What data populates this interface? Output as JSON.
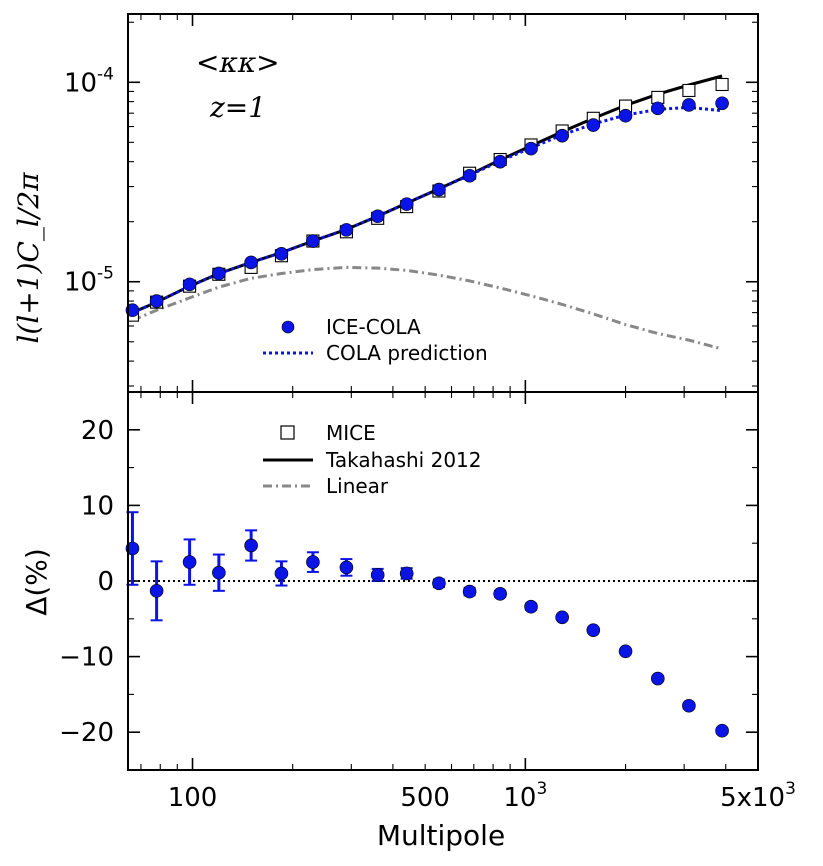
{
  "chart_data": [
    {
      "panel": "top",
      "type": "scatter",
      "xscale": "log",
      "yscale": "log",
      "xlim": [
        64,
        5000
      ],
      "ylim": [
        2.8e-06,
        0.00022
      ],
      "annotation": "<κκ>",
      "annotation_z": "z=1",
      "ylabel": "l(l+1)C_l/2π",
      "yticks": [
        {
          "value": 1e-05,
          "base": "10",
          "exp": "-5"
        },
        {
          "value": 0.0001,
          "base": "10",
          "exp": "-4"
        }
      ],
      "x": [
        66,
        78,
        98,
        120,
        150,
        185,
        230,
        290,
        360,
        440,
        550,
        680,
        840,
        1040,
        1290,
        1600,
        2000,
        2500,
        3100,
        3900
      ],
      "series": [
        {
          "name": "ICE-COLA",
          "marker": "circle",
          "color": "#0a14e6",
          "values": [
            7.2e-06,
            8e-06,
            9.7e-06,
            1.1e-05,
            1.25e-05,
            1.38e-05,
            1.6e-05,
            1.82e-05,
            2.13e-05,
            2.45e-05,
            2.9e-05,
            3.4e-05,
            4e-05,
            4.65e-05,
            5.4e-05,
            6.1e-05,
            6.8e-05,
            7.4e-05,
            7.7e-05,
            7.85e-05
          ]
        },
        {
          "name": "COLA prediction",
          "style": "dotted",
          "color": "#0a14e6",
          "values": [
            7e-06,
            7.9e-06,
            9.5e-06,
            1.1e-05,
            1.25e-05,
            1.4e-05,
            1.6e-05,
            1.83e-05,
            2.13e-05,
            2.48e-05,
            2.92e-05,
            3.42e-05,
            4.03e-05,
            4.69e-05,
            5.45e-05,
            6.18e-05,
            6.85e-05,
            7.31e-05,
            7.48e-05,
            7.2e-05
          ]
        },
        {
          "name": "MICE",
          "marker": "square",
          "color": "#000000",
          "values": [
            6.8e-06,
            7.9e-06,
            9.5e-06,
            1.09e-05,
            1.18e-05,
            1.35e-05,
            1.6e-05,
            1.78e-05,
            2.08e-05,
            2.38e-05,
            2.85e-05,
            3.5e-05,
            4.1e-05,
            4.85e-05,
            5.7e-05,
            6.6e-05,
            7.6e-05,
            8.4e-05,
            9.1e-05,
            9.75e-05
          ]
        },
        {
          "name": "Takahashi 2012",
          "style": "solid",
          "color": "#000000",
          "values": [
            7e-06,
            7.9e-06,
            9.5e-06,
            1.1e-05,
            1.25e-05,
            1.4e-05,
            1.6e-05,
            1.83e-05,
            2.13e-05,
            2.48e-05,
            2.92e-05,
            3.44e-05,
            4.08e-05,
            4.8e-05,
            5.65e-05,
            6.59e-05,
            7.66e-05,
            8.72e-05,
            9.69e-05,
            0.0001075
          ]
        },
        {
          "name": "Linear",
          "style": "dashdot",
          "color": "#888888",
          "values": [
            6.4e-06,
            7.2e-06,
            8.3e-06,
            9.4e-06,
            1.04e-05,
            1.1e-05,
            1.15e-05,
            1.18e-05,
            1.17e-05,
            1.14e-05,
            1.08e-05,
            1.01e-05,
            9.3e-06,
            8.5e-06,
            7.7e-06,
            6.9e-06,
            6.1e-06,
            5.5e-06,
            5.1e-06,
            4.6e-06
          ]
        }
      ]
    },
    {
      "panel": "bottom",
      "type": "scatter",
      "xscale": "log",
      "xlim": [
        64,
        5000
      ],
      "ylim": [
        -25,
        25
      ],
      "ylabel": "Δ(%)",
      "xlabel": "Multipole",
      "yticks": [
        20,
        10,
        0,
        -10,
        -20
      ],
      "ytick_labels": [
        "20",
        "10",
        "0",
        "−10",
        "−20"
      ],
      "xticks": [
        {
          "value": 100,
          "label": "100"
        },
        {
          "value": 500,
          "label": "500"
        },
        {
          "value": 1000,
          "base": "10",
          "exp": "3"
        },
        {
          "value": 5000,
          "base": "5x10",
          "exp": "3"
        }
      ],
      "reference_line": 0,
      "x": [
        66,
        78,
        98,
        120,
        150,
        185,
        230,
        290,
        360,
        440,
        550,
        680,
        840,
        1040,
        1290,
        1600,
        2000,
        2500,
        3100,
        3900
      ],
      "series": [
        {
          "name": "ICE-COLA",
          "color": "#0a14e6",
          "values": [
            4.3,
            -1.3,
            2.5,
            1.1,
            4.7,
            1.0,
            2.5,
            1.8,
            0.8,
            1.0,
            -0.3,
            -1.4,
            -1.7,
            -3.4,
            -4.8,
            -6.5,
            -9.3,
            -12.9,
            -16.5,
            -19.8
          ],
          "errors": [
            4.8,
            3.9,
            3.0,
            2.4,
            2.0,
            1.6,
            1.3,
            1.1,
            0.8,
            0.7,
            0.5,
            0.5,
            0.4,
            0.4,
            0.3,
            0.3,
            0.3,
            0.3,
            0.3,
            0.3
          ]
        }
      ]
    }
  ],
  "legend_top": {
    "items": [
      {
        "label": "ICE-COLA",
        "kind": "circle"
      },
      {
        "label": "COLA prediction",
        "kind": "dotted"
      }
    ]
  },
  "legend_bottom": {
    "items": [
      {
        "label": "MICE",
        "kind": "square"
      },
      {
        "label": "Takahashi 2012",
        "kind": "solid"
      },
      {
        "label": "Linear",
        "kind": "dashdot"
      }
    ]
  }
}
